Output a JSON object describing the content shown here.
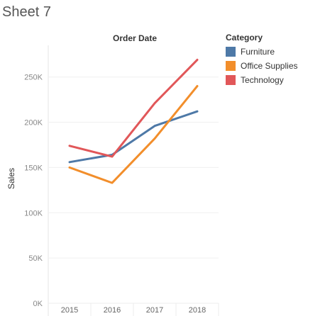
{
  "sheet": {
    "title": "Sheet 7"
  },
  "chart_data": {
    "type": "line",
    "title": "Order Date",
    "xlabel": "",
    "ylabel": "Sales",
    "x": [
      "2015",
      "2016",
      "2017",
      "2018"
    ],
    "yticks": [
      "0K",
      "50K",
      "100K",
      "150K",
      "200K",
      "250K"
    ],
    "ylim": [
      0,
      285000
    ],
    "grid": true,
    "legend_position": "right",
    "legend_title": "Category",
    "series": [
      {
        "name": "Furniture",
        "color": "#4e79a7",
        "values": [
          156000,
          164000,
          196000,
          212000
        ]
      },
      {
        "name": "Office Supplies",
        "color": "#f28e2b",
        "values": [
          150000,
          133000,
          182000,
          240000
        ]
      },
      {
        "name": "Technology",
        "color": "#e15759",
        "values": [
          174000,
          162000,
          221000,
          269000
        ]
      }
    ]
  }
}
